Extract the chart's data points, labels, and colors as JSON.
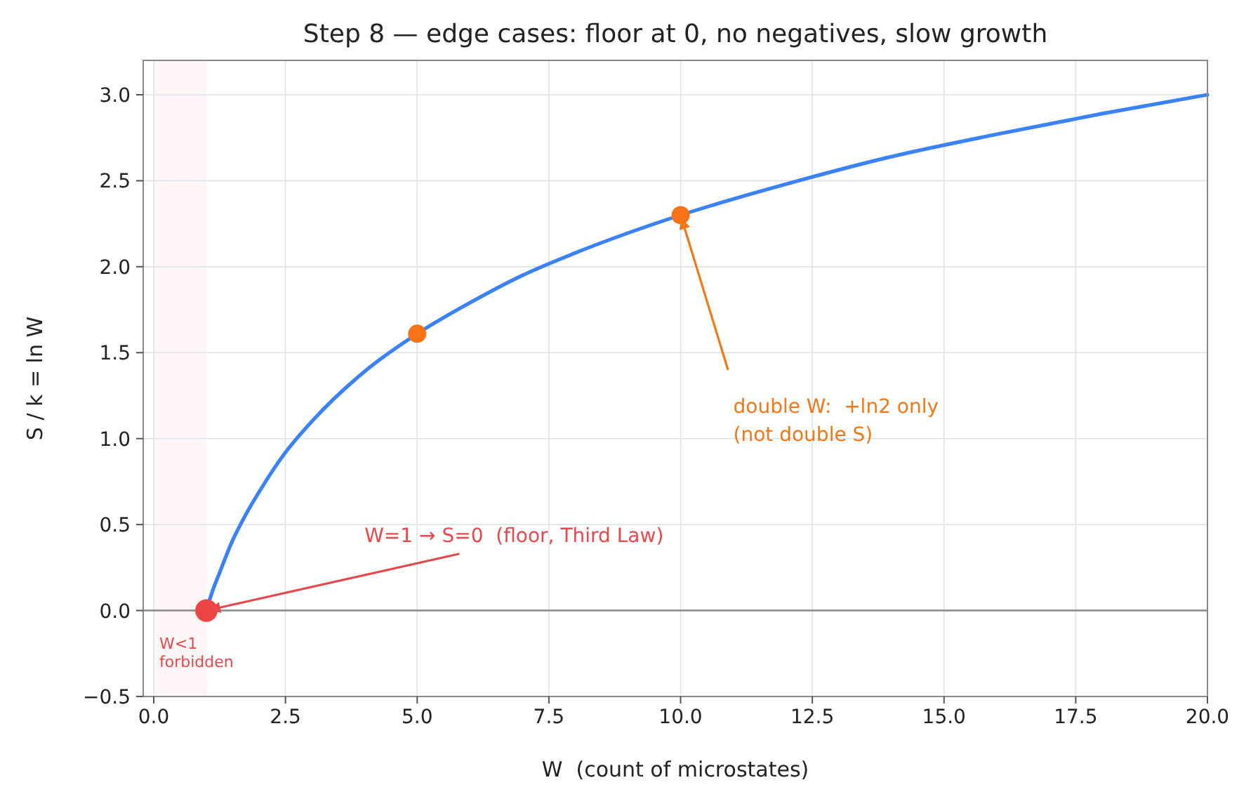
{
  "chart_data": {
    "type": "line",
    "title": "Step 8 — edge cases: floor at 0, no negatives, slow growth",
    "xlabel": "W  (count of microstates)",
    "ylabel": "S / k = ln W",
    "xlim": [
      -0.2,
      20
    ],
    "ylim": [
      -0.5,
      3.2
    ],
    "xticks": [
      {
        "value": 0,
        "label": "0.0"
      },
      {
        "value": 2.5,
        "label": "2.5"
      },
      {
        "value": 5,
        "label": "5.0"
      },
      {
        "value": 7.5,
        "label": "7.5"
      },
      {
        "value": 10,
        "label": "10.0"
      },
      {
        "value": 12.5,
        "label": "12.5"
      },
      {
        "value": 15,
        "label": "15.0"
      },
      {
        "value": 17.5,
        "label": "17.5"
      },
      {
        "value": 20,
        "label": "20.0"
      }
    ],
    "yticks": [
      {
        "value": -0.5,
        "label": "−0.5"
      },
      {
        "value": 0,
        "label": "0.0"
      },
      {
        "value": 0.5,
        "label": "0.5"
      },
      {
        "value": 1,
        "label": "1.0"
      },
      {
        "value": 1.5,
        "label": "1.5"
      },
      {
        "value": 2,
        "label": "2.0"
      },
      {
        "value": 2.5,
        "label": "2.5"
      },
      {
        "value": 3,
        "label": "3.0"
      }
    ],
    "grid": true,
    "series": [
      {
        "type": "line",
        "color": "#3b82f6",
        "x": [
          1,
          1.1,
          1.25,
          1.5,
          1.75,
          2,
          2.5,
          3,
          4,
          5,
          6,
          7,
          8,
          10,
          12,
          14,
          16,
          18,
          20
        ],
        "values": [
          0,
          0.1,
          0.22,
          0.41,
          0.56,
          0.69,
          0.92,
          1.1,
          1.39,
          1.61,
          1.79,
          1.95,
          2.08,
          2.3,
          2.48,
          2.64,
          2.77,
          2.89,
          3
        ]
      },
      {
        "type": "scatter",
        "marker": "circle",
        "color": "#f97316",
        "x": [
          5,
          10
        ],
        "values": [
          1.61,
          2.3
        ]
      },
      {
        "type": "scatter",
        "marker": "circle",
        "color": "#ef4444",
        "x": [
          1
        ],
        "values": [
          0
        ]
      }
    ],
    "ref_lines": [
      {
        "axis": "y",
        "value": 0,
        "color": "#888888"
      }
    ],
    "bands": [
      {
        "axis": "x",
        "from": 0,
        "to": 1,
        "label": "W<1\nforbidden",
        "color": "#fde2e2"
      }
    ],
    "annotations": [
      "W=1 → S=0  (floor, Third Law)",
      "double W:  +ln2 only\n(not double S)"
    ]
  }
}
